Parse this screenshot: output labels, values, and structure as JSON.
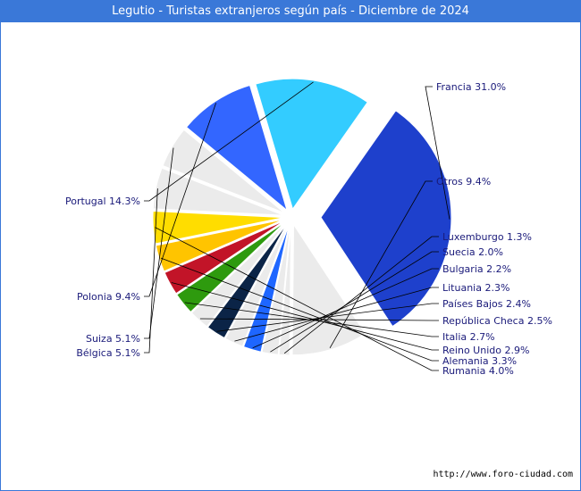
{
  "title": "Legutio - Turistas extranjeros según país - Diciembre de 2024",
  "source": "http://www.foro-ciudad.com",
  "chart_data": {
    "type": "pie",
    "title": "Legutio - Turistas extranjeros según país - Diciembre de 2024",
    "slices": [
      {
        "name": "Francia",
        "value": 31.0,
        "label": "Francia 31.0%",
        "color": "#1e40cc",
        "exploded": true
      },
      {
        "name": "Otros",
        "value": 9.4,
        "label": "Otros 9.4%",
        "color": "#ebebeb",
        "exploded": false
      },
      {
        "name": "Luxemburgo",
        "value": 1.3,
        "label": "Luxemburgo 1.3%",
        "color": "#ebebeb",
        "exploded": false
      },
      {
        "name": "Suecia",
        "value": 2.0,
        "label": "Suecia 2.0%",
        "color": "#ebebeb",
        "exploded": false
      },
      {
        "name": "Bulgaria",
        "value": 2.2,
        "label": "Bulgaria 2.2%",
        "color": "#1e66ff",
        "exploded": false
      },
      {
        "name": "Lituania",
        "value": 2.3,
        "label": "Lituania 2.3%",
        "color": "#ebebeb",
        "exploded": false
      },
      {
        "name": "Países Bajos",
        "value": 2.4,
        "label": "Países Bajos 2.4%",
        "color": "#0b2447",
        "exploded": false
      },
      {
        "name": "República Checa",
        "value": 2.5,
        "label": "República Checa 2.5%",
        "color": "#ebebeb",
        "exploded": false
      },
      {
        "name": "Italia",
        "value": 2.7,
        "label": "Italia 2.7%",
        "color": "#2e9a0e",
        "exploded": false
      },
      {
        "name": "Reino Unido",
        "value": 2.9,
        "label": "Reino Unido 2.9%",
        "color": "#c21428",
        "exploded": false
      },
      {
        "name": "Alemania",
        "value": 3.3,
        "label": "Alemania 3.3%",
        "color": "#ffc400",
        "exploded": false
      },
      {
        "name": "Rumania",
        "value": 4.0,
        "label": "Rumania 4.0%",
        "color": "#ffdd00",
        "exploded": false
      },
      {
        "name": "Bélgica",
        "value": 5.1,
        "label": "Bélgica 5.1%",
        "color": "#ebebeb",
        "exploded": false
      },
      {
        "name": "Suiza",
        "value": 5.1,
        "label": "Suiza 5.1%",
        "color": "#ebebeb",
        "exploded": false
      },
      {
        "name": "Polonia",
        "value": 9.4,
        "label": "Polonia 9.4%",
        "color": "#3366ff",
        "exploded": false
      },
      {
        "name": "Portugal",
        "value": 14.3,
        "label": "Portugal 14.3%",
        "color": "#33ccff",
        "exploded": false
      }
    ]
  }
}
